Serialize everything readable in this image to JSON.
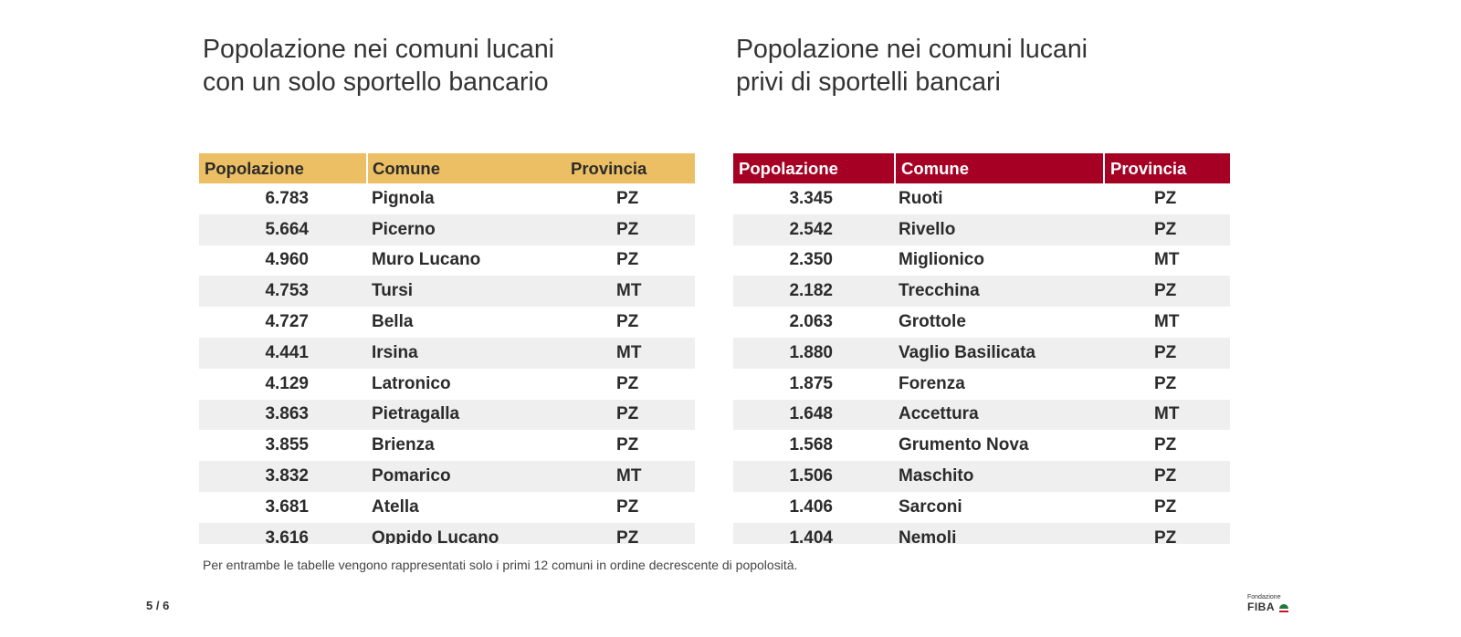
{
  "left": {
    "title_line1": "Popolazione nei comuni lucani",
    "title_line2": "con un solo sportello bancario",
    "headers": {
      "popolazione": "Popolazione",
      "comune": "Comune",
      "provincia": "Provincia"
    },
    "rows": [
      {
        "pop": "6.783",
        "comune": "Pignola",
        "prov": "PZ"
      },
      {
        "pop": "5.664",
        "comune": "Picerno",
        "prov": "PZ"
      },
      {
        "pop": "4.960",
        "comune": "Muro Lucano",
        "prov": "PZ"
      },
      {
        "pop": "4.753",
        "comune": "Tursi",
        "prov": "MT"
      },
      {
        "pop": "4.727",
        "comune": "Bella",
        "prov": "PZ"
      },
      {
        "pop": "4.441",
        "comune": "Irsina",
        "prov": "MT"
      },
      {
        "pop": "4.129",
        "comune": "Latronico",
        "prov": "PZ"
      },
      {
        "pop": "3.863",
        "comune": "Pietragalla",
        "prov": "PZ"
      },
      {
        "pop": "3.855",
        "comune": "Brienza",
        "prov": "PZ"
      },
      {
        "pop": "3.832",
        "comune": "Pomarico",
        "prov": "MT"
      },
      {
        "pop": "3.681",
        "comune": "Atella",
        "prov": "PZ"
      },
      {
        "pop": "3.616",
        "comune": "Oppido Lucano",
        "prov": "PZ"
      }
    ]
  },
  "right": {
    "title_line1": "Popolazione nei comuni lucani",
    "title_line2": "privi di sportelli bancari",
    "headers": {
      "popolazione": "Popolazione",
      "comune": "Comune",
      "provincia": "Provincia"
    },
    "rows": [
      {
        "pop": "3.345",
        "comune": "Ruoti",
        "prov": "PZ"
      },
      {
        "pop": "2.542",
        "comune": "Rivello",
        "prov": "PZ"
      },
      {
        "pop": "2.350",
        "comune": "Miglionico",
        "prov": "MT"
      },
      {
        "pop": "2.182",
        "comune": "Trecchina",
        "prov": "PZ"
      },
      {
        "pop": "2.063",
        "comune": "Grottole",
        "prov": "MT"
      },
      {
        "pop": "1.880",
        "comune": "Vaglio Basilicata",
        "prov": "PZ"
      },
      {
        "pop": "1.875",
        "comune": "Forenza",
        "prov": "PZ"
      },
      {
        "pop": "1.648",
        "comune": "Accettura",
        "prov": "MT"
      },
      {
        "pop": "1.568",
        "comune": "Grumento Nova",
        "prov": "PZ"
      },
      {
        "pop": "1.506",
        "comune": "Maschito",
        "prov": "PZ"
      },
      {
        "pop": "1.406",
        "comune": "Sarconi",
        "prov": "PZ"
      },
      {
        "pop": "1.404",
        "comune": "Nemoli",
        "prov": "PZ"
      }
    ]
  },
  "footnote": "Per entrambe le tabelle vengono rappresentati solo i primi 12 comuni in ordine decrescente di popolosità.",
  "page_indicator": "5 / 6",
  "logo": {
    "small": "Fondazione",
    "big": "FIBA"
  },
  "colors": {
    "left_header": "#ecbf64",
    "right_header": "#a60024",
    "stripe": "#efefef"
  }
}
